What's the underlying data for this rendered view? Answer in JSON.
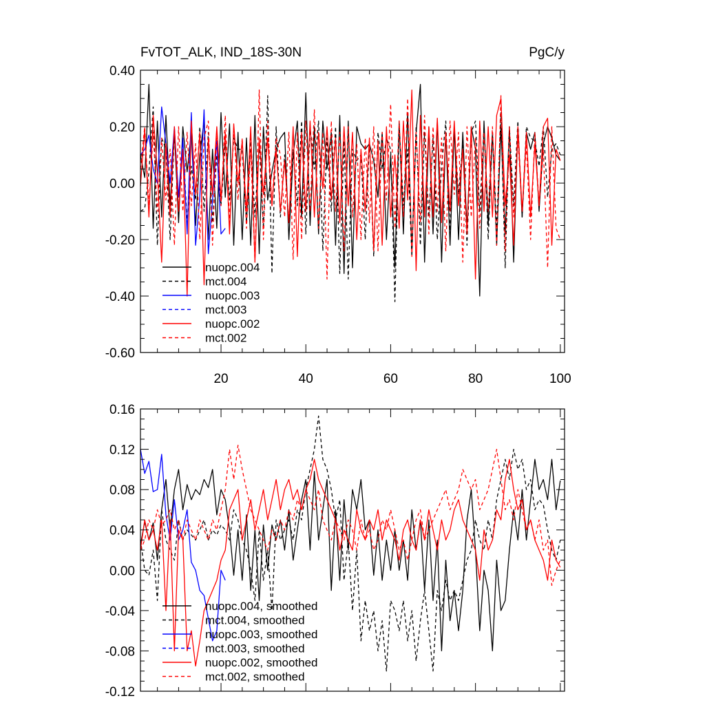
{
  "chart_data": [
    {
      "type": "line",
      "title": "FvTOT_ALK, IND_18S-30N",
      "units": "PgC/y",
      "xlabel": "",
      "ylabel": "",
      "xlim": [
        1,
        101
      ],
      "ylim": [
        -0.6,
        0.4
      ],
      "xticks": [
        20,
        40,
        60,
        80,
        100
      ],
      "xtick_labels": [
        "20",
        "40",
        "60",
        "80",
        "100"
      ],
      "yticks": [
        -0.6,
        -0.4,
        -0.2,
        0.0,
        0.2,
        0.4
      ],
      "ytick_labels": [
        "-0.60",
        "-0.40",
        "-0.20",
        "0.00",
        "0.20",
        "0.40"
      ],
      "legend_position": "bottom-left",
      "series": [
        {
          "name": "nuopc.004",
          "color": "#000000",
          "dash": "solid",
          "x_start": 1,
          "values": [
            0.1,
            0.02,
            0.35,
            -0.16,
            0.22,
            -0.12,
            0.24,
            -0.08,
            0.18,
            -0.14,
            0.2,
            0.04,
            0.18,
            -0.15,
            0.1,
            0.22,
            -0.2,
            0.12,
            -0.16,
            0.25,
            -0.05,
            0.21,
            -0.22,
            0.18,
            -0.2,
            0.16,
            -0.22,
            0.24,
            -0.25,
            0.2,
            -0.06,
            0.04,
            0.12,
            0.16,
            0.18,
            -0.2,
            0.1,
            0.22,
            -0.12,
            0.32,
            -0.15,
            0.2,
            -0.18,
            0.22,
            0.05,
            0.18,
            -0.22,
            0.24,
            -0.32,
            0.22,
            -0.3,
            0.2,
            0.14,
            0.12,
            0.14,
            0.08,
            -0.05,
            0.18,
            -0.2,
            0.1,
            -0.3,
            0.22,
            -0.18,
            0.25,
            -0.24,
            0.18,
            0.35,
            -0.28,
            0.2,
            -0.18,
            0.22,
            -0.28,
            0.18,
            -0.22,
            0.2,
            -0.2,
            0.18,
            -0.16,
            0.2,
            0.12,
            -0.4,
            0.22,
            -0.15,
            0.18,
            -0.22,
            0.2,
            -0.18,
            0.2,
            -0.28,
            0.2,
            -0.12,
            0.18,
            0.12,
            0.18,
            -0.1,
            0.14,
            0.2,
            0.16,
            0.1,
            0.08
          ]
        },
        {
          "name": "mct.004",
          "color": "#000000",
          "dash": "dashed",
          "x_start": 1,
          "values": [
            -0.1,
            -0.09,
            0.04,
            0.27,
            -0.22,
            0.16,
            0.12,
            -0.2,
            0.18,
            -0.1,
            0.15,
            -0.14,
            0.06,
            -0.06,
            0.2,
            -0.1,
            0.18,
            -0.14,
            0.1,
            -0.08,
            0.14,
            -0.06,
            0.16,
            0.12,
            0.12,
            -0.14,
            0.16,
            -0.12,
            0.14,
            -0.16,
            0.31,
            -0.32,
            0.2,
            -0.12,
            0.1,
            -0.14,
            0.12,
            -0.08,
            0.22,
            -0.18,
            0.2,
            0.05,
            0.22,
            -0.24,
            0.16,
            -0.1,
            0.2,
            -0.32,
            0.15,
            -0.34,
            0.12,
            0.08,
            0.1,
            -0.2,
            0.15,
            -0.26,
            0.18,
            0.05,
            0.16,
            0.12,
            -0.42,
            0.2,
            -0.08,
            0.12,
            -0.26,
            0.2,
            -0.22,
            0.18,
            -0.12,
            0.16,
            -0.2,
            0.06,
            0.22,
            -0.18,
            0.2,
            -0.04,
            0.14,
            -0.22,
            0.18,
            0.22,
            -0.1,
            0.2,
            -0.2,
            0.18,
            -0.16,
            0.25,
            -0.3,
            0.2,
            -0.08,
            0.22,
            -0.12,
            0.2,
            0.16,
            0.15,
            0.06,
            0.2,
            -0.05,
            0.12,
            0.14,
            0.1
          ]
        },
        {
          "name": "nuopc.003",
          "color": "#0000ff",
          "dash": "solid",
          "x_start": 1,
          "values": [
            0.1,
            0.12,
            0.17,
            0.05,
            0.0,
            0.27,
            0.14,
            0.0,
            0.2,
            -0.05,
            0.16,
            -0.18,
            0.25,
            -0.22,
            -0.05,
            0.26,
            -0.25,
            -0.06,
            0.15,
            -0.18,
            -0.16
          ]
        },
        {
          "name": "mct.003",
          "color": "#0000ff",
          "dash": "dashed",
          "x_start": 1,
          "values": []
        },
        {
          "name": "nuopc.002",
          "color": "#ff0000",
          "dash": "solid",
          "x_start": 1,
          "values": [
            -0.01,
            0.19,
            -0.12,
            0.24,
            0.04,
            -0.28,
            0.14,
            -0.12,
            0.2,
            -0.1,
            0.12,
            -0.4,
            0.22,
            -0.04,
            0.18,
            -0.36,
            0.16,
            -0.04,
            0.2,
            -0.06,
            0.18,
            -0.18,
            0.21,
            0.0,
            0.15,
            -0.1,
            0.2,
            -0.28,
            0.16,
            -0.04,
            0.16,
            -0.08,
            0.12,
            -0.1,
            0.08,
            -0.14,
            0.2,
            -0.26,
            0.18,
            -0.1,
            0.22,
            -0.12,
            0.18,
            -0.02,
            0.2,
            -0.06,
            0.16,
            -0.14,
            0.2,
            -0.08,
            0.18,
            -0.2,
            0.12,
            -0.1,
            0.16,
            -0.24,
            0.15,
            -0.22,
            0.2,
            -0.12,
            0.1,
            -0.16,
            0.22,
            -0.06,
            0.33,
            -0.31,
            0.24,
            -0.12,
            0.2,
            -0.12,
            0.23,
            -0.14,
            0.18,
            -0.1,
            0.22,
            -0.08,
            0.12,
            -0.18,
            0.2,
            -0.34,
            0.22,
            -0.1,
            0.2,
            -0.12,
            0.24,
            0.3,
            -0.08,
            0.1,
            -0.22,
            0.2,
            -0.1,
            0.18,
            -0.12,
            0.14,
            -0.08,
            0.2,
            0.23,
            -0.22,
            0.12,
            0.08
          ]
        },
        {
          "name": "mct.002",
          "color": "#ff0000",
          "dash": "dashed",
          "x_start": 1,
          "values": [
            0.05,
            0.2,
            -0.08,
            0.18,
            -0.1,
            0.16,
            -0.06,
            0.12,
            -0.22,
            0.2,
            -0.1,
            0.18,
            -0.08,
            0.14,
            -0.2,
            0.16,
            0.22,
            -0.22,
            0.18,
            -0.08,
            0.24,
            -0.14,
            0.2,
            -0.06,
            0.16,
            -0.16,
            0.12,
            -0.28,
            0.33,
            -0.2,
            0.22,
            -0.08,
            0.16,
            0.1,
            -0.12,
            0.18,
            -0.27,
            0.18,
            -0.2,
            0.22,
            -0.1,
            0.26,
            -0.16,
            0.18,
            -0.34,
            0.22,
            -0.1,
            0.18,
            -0.24,
            0.2,
            -0.12,
            0.14,
            -0.2,
            0.16,
            -0.14,
            0.2,
            -0.24,
            0.18,
            -0.06,
            0.28,
            -0.16,
            0.22,
            -0.12,
            0.3,
            -0.26,
            0.18,
            -0.14,
            0.24,
            -0.18,
            0.2,
            -0.1,
            0.16,
            -0.24,
            0.22,
            -0.04,
            0.18,
            -0.28,
            0.2,
            -0.12,
            0.16,
            -0.16,
            0.18,
            -0.1,
            0.2,
            -0.22,
            0.31,
            -0.24,
            0.2,
            -0.12,
            0.16,
            -0.1,
            0.14,
            -0.2,
            0.18,
            -0.08,
            0.12,
            -0.3,
            0.2,
            -0.16,
            -0.2
          ]
        }
      ]
    },
    {
      "type": "line",
      "title": "",
      "xlabel": "",
      "ylabel": "",
      "xlim": [
        1,
        101
      ],
      "ylim": [
        -0.12,
        0.16
      ],
      "xticks": [
        20,
        40,
        60,
        80,
        100
      ],
      "xtick_labels": [],
      "yticks": [
        -0.12,
        -0.08,
        -0.04,
        0.0,
        0.04,
        0.08,
        0.12,
        0.16
      ],
      "ytick_labels": [
        "-0.12",
        "-0.08",
        "-0.04",
        "0.00",
        "0.04",
        "0.08",
        "0.12",
        "0.16"
      ],
      "legend_position": "bottom-left",
      "series": [
        {
          "name": "nuopc.004, smoothed",
          "color": "#000000",
          "dash": "solid",
          "x_start": 1,
          "values": [
            0.025,
            0.048,
            0.03,
            0.047,
            0.01,
            0.06,
            0.09,
            0.04,
            0.08,
            0.1,
            0.06,
            0.085,
            0.07,
            0.08,
            0.075,
            0.09,
            0.082,
            0.1,
            0.055,
            0.08,
            0.07,
            0.04,
            -0.005,
            0.04,
            -0.01,
            0.055,
            -0.02,
            0.04,
            -0.03,
            0.045,
            0.0,
            0.045,
            0.03,
            0.05,
            0.02,
            0.06,
            0.01,
            0.04,
            0.07,
            0.09,
            0.02,
            0.098,
            0.03,
            0.06,
            0.09,
            -0.02,
            0.06,
            -0.01,
            0.07,
            0.02,
            0.08,
            0.06,
            0.09,
            0.04,
            0.05,
            -0.005,
            0.04,
            -0.01,
            0.03,
            0.0,
            0.04,
            0.0,
            0.03,
            -0.01,
            0.06,
            0.02,
            0.05,
            -0.02,
            0.05,
            -0.03,
            0.03,
            -0.08,
            0.01,
            -0.05,
            -0.02,
            -0.06,
            -0.02,
            0.05,
            0.08,
            0.02,
            -0.06,
            0.0,
            -0.02,
            -0.08,
            0.01,
            -0.04,
            -0.03,
            0.02,
            0.06,
            0.03,
            0.08,
            0.03,
            0.07,
            0.11,
            0.08,
            0.09,
            0.07,
            0.11,
            0.06,
            0.089
          ]
        },
        {
          "name": "mct.004, smoothed",
          "color": "#000000",
          "dash": "dashed",
          "x_start": 1,
          "values": [
            0.03,
            0.0,
            -0.005,
            0.02,
            -0.03,
            0.06,
            0.03,
            0.02,
            0.01,
            0.05,
            0.03,
            0.04,
            0.035,
            0.03,
            0.04,
            0.05,
            0.03,
            0.04,
            0.035,
            0.045,
            0.04,
            0.03,
            0.06,
            0.05,
            0.03,
            0.02,
            0.0,
            -0.03,
            0.04,
            -0.01,
            0.02,
            -0.04,
            0.05,
            0.03,
            0.04,
            0.05,
            0.03,
            0.06,
            0.05,
            0.08,
            0.1,
            0.12,
            0.153,
            0.11,
            0.1,
            0.08,
            0.05,
            0.07,
            -0.01,
            0.03,
            -0.04,
            0.02,
            -0.07,
            -0.03,
            -0.06,
            -0.04,
            -0.08,
            -0.05,
            -0.1,
            -0.03,
            -0.04,
            -0.06,
            -0.03,
            -0.07,
            -0.04,
            -0.09,
            -0.05,
            -0.02,
            -0.06,
            -0.1,
            -0.02,
            -0.04,
            -0.01,
            -0.03,
            -0.02,
            -0.03,
            -0.01,
            0.01,
            0.02,
            0.05,
            0.03,
            0.02,
            0.05,
            0.03,
            0.07,
            0.09,
            0.11,
            0.09,
            0.12,
            0.1,
            0.11,
            0.08,
            0.09,
            0.06,
            0.07,
            0.065,
            0.04,
            0.02,
            0.01,
            0.03
          ]
        },
        {
          "name": "nuopc.003, smoothed",
          "color": "#0000ff",
          "dash": "solid",
          "x_start": 1,
          "values": [
            0.12,
            0.096,
            0.108,
            0.078,
            0.08,
            0.115,
            0.055,
            0.03,
            0.07,
            0.03,
            0.04,
            0.06,
            0.008,
            0.0,
            -0.02,
            -0.025,
            -0.048,
            -0.07,
            -0.06,
            0.0,
            -0.01
          ]
        },
        {
          "name": "mct.003, smoothed",
          "color": "#0000ff",
          "dash": "dashed",
          "x_start": 1,
          "values": []
        },
        {
          "name": "nuopc.002, smoothed",
          "color": "#ff0000",
          "dash": "solid",
          "x_start": 1,
          "values": [
            0.02,
            0.05,
            0.03,
            0.04,
            0.02,
            0.05,
            -0.04,
            0.05,
            -0.08,
            0.04,
            0.03,
            -0.08,
            -0.06,
            -0.095,
            -0.07,
            -0.04,
            -0.03,
            -0.02,
            -0.01,
            0.01,
            0.02,
            0.06,
            0.07,
            0.08,
            0.03,
            0.05,
            0.07,
            0.04,
            0.06,
            0.08,
            0.05,
            0.07,
            0.09,
            0.06,
            0.08,
            0.09,
            0.07,
            0.08,
            0.06,
            0.08,
            0.09,
            0.11,
            0.09,
            0.08,
            0.07,
            0.06,
            0.05,
            0.02,
            0.04,
            0.03,
            0.02,
            0.06,
            0.04,
            0.03,
            0.05,
            0.04,
            0.06,
            0.03,
            0.05,
            0.04,
            0.03,
            0.01,
            0.04,
            0.05,
            0.03,
            0.02,
            0.05,
            0.03,
            0.06,
            0.04,
            0.02,
            0.05,
            0.03,
            0.04,
            0.06,
            0.07,
            0.05,
            0.04,
            0.03,
            0.02,
            -0.01,
            0.04,
            0.02,
            0.03,
            0.06,
            0.05,
            0.09,
            0.11,
            0.08,
            0.06,
            0.07,
            0.04,
            0.05,
            0.03,
            0.02,
            0.01,
            -0.01,
            0.03,
            0.01,
            0.003
          ]
        },
        {
          "name": "mct.002, smoothed",
          "color": "#ff0000",
          "dash": "dashed",
          "x_start": 1,
          "values": [
            0.02,
            0.03,
            0.05,
            0.04,
            0.06,
            0.045,
            0.05,
            0.06,
            0.04,
            0.05,
            0.03,
            0.05,
            0.04,
            0.03,
            0.05,
            0.04,
            0.03,
            0.05,
            0.04,
            0.06,
            0.08,
            0.12,
            0.09,
            0.124,
            0.1,
            0.08,
            0.06,
            0.05,
            0.04,
            0.03,
            0.02,
            0.04,
            0.03,
            0.05,
            0.04,
            0.06,
            0.05,
            0.07,
            0.06,
            0.08,
            0.07,
            0.06,
            0.08,
            0.05,
            0.04,
            0.03,
            0.05,
            0.04,
            0.03,
            0.05,
            0.04,
            0.02,
            0.05,
            0.03,
            0.04,
            0.02,
            0.03,
            0.05,
            0.04,
            0.06,
            0.04,
            0.02,
            0.03,
            0.01,
            0.03,
            0.05,
            0.06,
            0.03,
            0.04,
            0.05,
            0.06,
            0.07,
            0.08,
            0.06,
            0.07,
            0.08,
            0.1,
            0.09,
            0.08,
            0.09,
            0.06,
            0.07,
            0.08,
            0.1,
            0.12,
            0.09,
            0.06,
            0.07,
            0.05,
            0.08,
            0.06,
            0.04,
            0.05,
            0.03,
            0.05,
            0.02,
            0.03,
            -0.015,
            0.0,
            0.01
          ]
        }
      ]
    }
  ]
}
